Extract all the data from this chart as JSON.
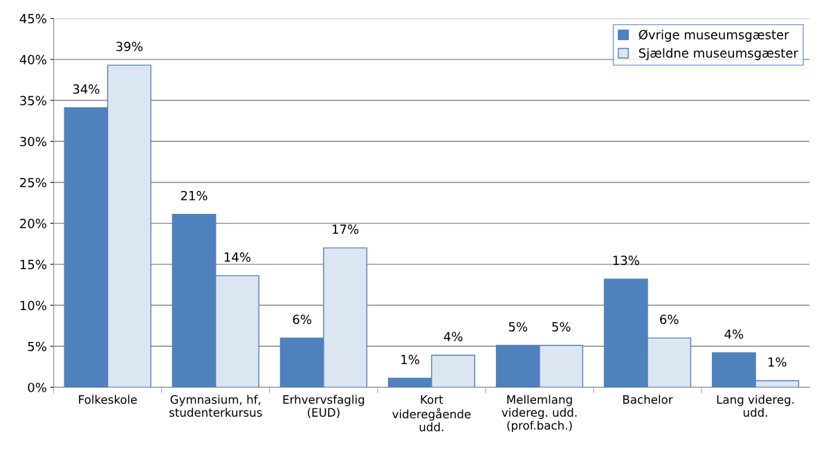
{
  "chart_data": {
    "type": "bar",
    "categories": [
      "Folkeskole",
      "Gymnasium, hf,\nstudenterkursus",
      "Erhvervsfaglig\n(EUD)",
      "Kort\nvideregående\nudd.",
      "Mellemlang\nvidereg. udd.\n(prof.bach.)",
      "Bachelor",
      "Lang videreg.\nudd."
    ],
    "series": [
      {
        "name": "Øvrige museumsgæster",
        "color": "#4f81bd",
        "values": [
          34.1,
          21.1,
          6.0,
          1.1,
          5.1,
          13.2,
          4.2
        ],
        "value_labels": [
          "34%",
          "21%",
          "6%",
          "1%",
          "5%",
          "13%",
          "4%"
        ]
      },
      {
        "name": "Sjældne museumsgæster",
        "color": "#dce6f2",
        "values": [
          39.3,
          13.6,
          17.0,
          3.9,
          5.1,
          6.0,
          0.8
        ],
        "value_labels": [
          "39%",
          "14%",
          "17%",
          "4%",
          "5%",
          "6%",
          "1%"
        ]
      }
    ],
    "ylim": [
      0,
      45
    ],
    "yticks": [
      {
        "value": 0,
        "label": "0%"
      },
      {
        "value": 5,
        "label": "5%"
      },
      {
        "value": 10,
        "label": "10%"
      },
      {
        "value": 15,
        "label": "15%"
      },
      {
        "value": 20,
        "label": "20%"
      },
      {
        "value": 25,
        "label": "25%"
      },
      {
        "value": 30,
        "label": "30%"
      },
      {
        "value": 35,
        "label": "35%"
      },
      {
        "value": 40,
        "label": "40%"
      },
      {
        "value": 45,
        "label": "45%"
      }
    ],
    "grid": "y",
    "legend": "top right"
  }
}
